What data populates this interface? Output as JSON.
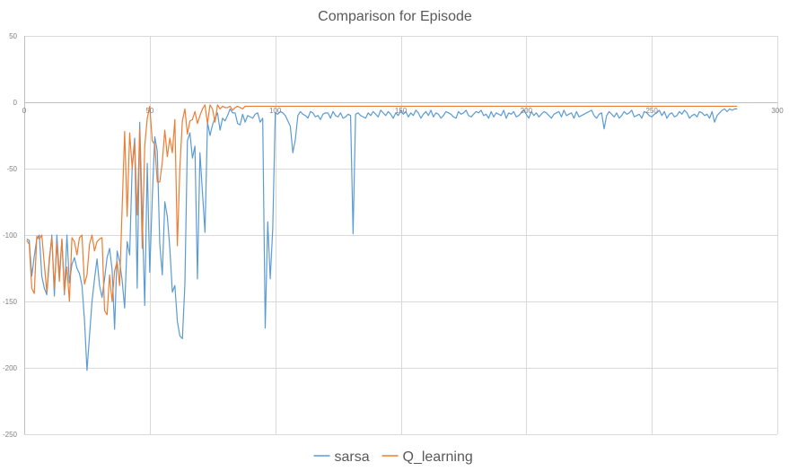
{
  "chart_data": {
    "type": "line",
    "title": "Comparison for Episode",
    "xlabel": "",
    "ylabel": "",
    "xlim": [
      0,
      300
    ],
    "ylim": [
      -250,
      50
    ],
    "x_ticks": [
      0,
      50,
      100,
      150,
      200,
      250,
      300
    ],
    "y_ticks": [
      50,
      0,
      -50,
      -100,
      -150,
      -200,
      -250
    ],
    "grid": true,
    "legend_position": "bottom",
    "series": [
      {
        "name": "sarsa",
        "color": "#5b9bd5",
        "values": [
          -103,
          -104,
          -131,
          -116,
          -103,
          -100,
          -131,
          -140,
          -145,
          -120,
          -100,
          -146,
          -100,
          -131,
          -103,
          -145,
          -100,
          -136,
          -122,
          -117,
          -125,
          -129,
          -138,
          -164,
          -202,
          -176,
          -150,
          -133,
          -118,
          -138,
          -147,
          -133,
          -117,
          -110,
          -126,
          -171,
          -112,
          -120,
          -134,
          -155,
          -105,
          -115,
          -48,
          -27,
          -140,
          -15,
          -84,
          -153,
          -46,
          -128,
          -72,
          -26,
          -37,
          -107,
          -130,
          -75,
          -86,
          -110,
          -143,
          -138,
          -165,
          -176,
          -178,
          -137,
          -29,
          -23,
          -42,
          -33,
          -133,
          -38,
          -68,
          -98,
          -15,
          -25,
          -17,
          -12,
          -8,
          -21,
          -12,
          -14,
          -10,
          -5,
          -8,
          -8,
          -16,
          -17,
          -9,
          -15,
          -10,
          -11,
          -12,
          -9,
          -8,
          -15,
          -12,
          -170,
          -90,
          -133,
          -95,
          -8,
          -9,
          -7,
          -8,
          -10,
          -14,
          -18,
          -38,
          -28,
          -10,
          -7,
          -9,
          -10,
          -12,
          -7,
          -8,
          -11,
          -10,
          -13,
          -9,
          -8,
          -8,
          -12,
          -7,
          -10,
          -11,
          -8,
          -12,
          -11,
          -9,
          -10,
          -99,
          -9,
          -8,
          -10,
          -11,
          -12,
          -8,
          -10,
          -7,
          -9,
          -11,
          -6,
          -8,
          -10,
          -7,
          -9,
          -12,
          -8,
          -10,
          -6,
          -9,
          -7,
          -11,
          -8,
          -10,
          -6,
          -8,
          -12,
          -9,
          -7,
          -10,
          -6,
          -11,
          -8,
          -9,
          -12,
          -10,
          -7,
          -8,
          -9,
          -11,
          -12,
          -7,
          -9,
          -8,
          -6,
          -10,
          -11,
          -9,
          -7,
          -8,
          -6,
          -10,
          -9,
          -12,
          -7,
          -11,
          -8,
          -9,
          -10,
          -6,
          -12,
          -8,
          -9,
          -7,
          -11,
          -10,
          -8,
          -6,
          -9,
          -12,
          -7,
          -10,
          -8,
          -11,
          -9,
          -7,
          -8,
          -10,
          -12,
          -9,
          -8,
          -7,
          -11,
          -6,
          -10,
          -9,
          -8,
          -12,
          -7,
          -11,
          -10,
          -9,
          -8,
          -7,
          -6,
          -10,
          -12,
          -9,
          -8,
          -20,
          -10,
          -7,
          -9,
          -11,
          -8,
          -12,
          -10,
          -7,
          -9,
          -8,
          -6,
          -11,
          -10,
          -9,
          -12,
          -7,
          -8,
          -10,
          -11,
          -9,
          -8,
          -6,
          -10,
          -7,
          -12,
          -9,
          -8,
          -11,
          -10,
          -7,
          -9,
          -6,
          -8,
          -12,
          -10,
          -9,
          -11,
          -7,
          -8,
          -10,
          -9,
          -12,
          -7,
          -15,
          -10,
          -8,
          -6,
          -5,
          -7,
          -5,
          -6,
          -5,
          -5
        ]
      },
      {
        "name": "Q_learning",
        "color": "#ed7d31",
        "values": [
          -104,
          -107,
          -140,
          -144,
          -101,
          -103,
          -100,
          -122,
          -143,
          -117,
          -102,
          -140,
          -106,
          -135,
          -103,
          -143,
          -124,
          -150,
          -102,
          -105,
          -115,
          -102,
          -100,
          -137,
          -130,
          -107,
          -100,
          -112,
          -105,
          -103,
          -102,
          -157,
          -160,
          -130,
          -150,
          -127,
          -120,
          -138,
          -80,
          -22,
          -86,
          -23,
          -50,
          -30,
          -85,
          -20,
          -110,
          -33,
          -12,
          -3,
          -29,
          -32,
          -60,
          -60,
          -45,
          -21,
          -41,
          -27,
          -38,
          -13,
          -108,
          -49,
          -14,
          -5,
          -24,
          -14,
          -13,
          -7,
          -16,
          -10,
          -5,
          -2,
          -16,
          -2,
          -5,
          -15,
          -2,
          -5,
          -3,
          -4,
          -4,
          -3,
          -6,
          -4,
          -3,
          -4,
          -5,
          -3,
          -3,
          -3,
          -3,
          -3,
          -3,
          -3,
          -3,
          -3,
          -3,
          -3,
          -3,
          -3,
          -3,
          -3,
          -3,
          -3,
          -3,
          -3,
          -3,
          -3,
          -3,
          -3,
          -3,
          -3,
          -3,
          -3,
          -3,
          -3,
          -3,
          -3,
          -3,
          -3,
          -3,
          -3,
          -3,
          -3,
          -3,
          -3,
          -3,
          -3,
          -3,
          -3,
          -3,
          -3,
          -3,
          -3,
          -3,
          -3,
          -3,
          -3,
          -3,
          -3,
          -3,
          -3,
          -3,
          -3,
          -3,
          -3,
          -3,
          -3,
          -3,
          -3,
          -3,
          -3,
          -3,
          -3,
          -3,
          -3,
          -3,
          -3,
          -3,
          -3,
          -3,
          -3,
          -3,
          -3,
          -3,
          -3,
          -3,
          -3,
          -3,
          -3,
          -3,
          -3,
          -3,
          -3,
          -3,
          -3,
          -3,
          -3,
          -3,
          -3,
          -3,
          -3,
          -3,
          -3,
          -3,
          -3,
          -3,
          -3,
          -3,
          -3,
          -3,
          -3,
          -3,
          -3,
          -3,
          -3,
          -3,
          -3,
          -3,
          -3,
          -3,
          -3,
          -3,
          -3,
          -3,
          -3,
          -3,
          -3,
          -3,
          -3,
          -3,
          -3,
          -3,
          -3,
          -3,
          -3,
          -3,
          -3,
          -3,
          -3,
          -3,
          -3,
          -3,
          -3,
          -3,
          -3,
          -3,
          -3,
          -3,
          -3,
          -3,
          -3,
          -3,
          -3,
          -3,
          -3,
          -3,
          -3,
          -3,
          -3,
          -3,
          -3,
          -3,
          -3,
          -3,
          -3,
          -3,
          -3,
          -3,
          -3,
          -3,
          -3,
          -3,
          -3,
          -3,
          -3,
          -3,
          -3,
          -3,
          -3,
          -3,
          -3,
          -3,
          -3,
          -3,
          -3,
          -3,
          -3,
          -3,
          -3,
          -3,
          -3,
          -3,
          -3,
          -3,
          -3,
          -3,
          -3,
          -3,
          -3,
          -3,
          -3,
          -3,
          -3
        ]
      }
    ]
  }
}
